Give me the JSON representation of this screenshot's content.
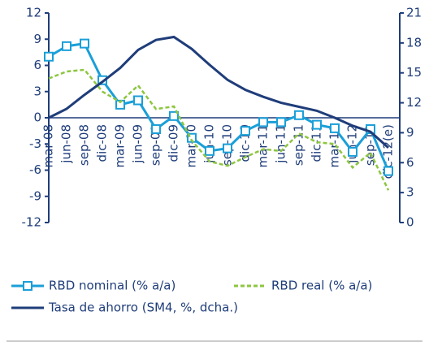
{
  "chart_data": {
    "type": "line",
    "categories": [
      "mar-08",
      "jun-08",
      "sep-08",
      "dic-08",
      "mar-09",
      "jun-09",
      "sep-09",
      "dic-09",
      "mar-10",
      "jun-10",
      "sep-10",
      "dic-10",
      "mar-11",
      "jun-11",
      "sep-11",
      "dic-11",
      "mar-12",
      "jun-12",
      "sep-12",
      "dic-12(e)"
    ],
    "series": [
      {
        "name": "RBD nominal (% a/a)",
        "color": "#1a9fd8",
        "marker": "square",
        "values": [
          7.0,
          8.2,
          8.5,
          4.3,
          1.5,
          2.0,
          -1.3,
          0.2,
          -2.3,
          -3.8,
          -3.5,
          -1.5,
          -0.5,
          -0.5,
          0.3,
          -0.8,
          -1.2,
          -3.9,
          -1.3,
          -6.1
        ]
      },
      {
        "name": "RBD real (% a/a)",
        "color": "#8dc63f",
        "dashed": true,
        "values": [
          4.5,
          5.3,
          5.5,
          3.0,
          1.8,
          3.7,
          1.0,
          1.3,
          -2.6,
          -5.0,
          -5.5,
          -4.5,
          -3.6,
          -3.8,
          -1.8,
          -2.8,
          -3.0,
          -5.7,
          -4.0,
          -8.3
        ]
      },
      {
        "name": "Tasa de ahorro (SM4, %, dcha.)",
        "color": "#1f3d7a",
        "axis": "y2",
        "values": [
          10.5,
          11.4,
          12.8,
          14.1,
          15.5,
          17.3,
          18.3,
          18.6,
          17.4,
          15.8,
          14.3,
          13.3,
          12.6,
          12.0,
          11.6,
          11.2,
          10.5,
          9.7,
          9.1,
          7.5
        ]
      }
    ],
    "ylim": [
      -12,
      12
    ],
    "yticks": [
      -12,
      -9,
      -6,
      -3,
      0,
      3,
      6,
      9,
      12
    ],
    "y2lim": [
      0,
      21
    ],
    "y2ticks": [
      0,
      3,
      6,
      9,
      12,
      15,
      18,
      21
    ]
  }
}
